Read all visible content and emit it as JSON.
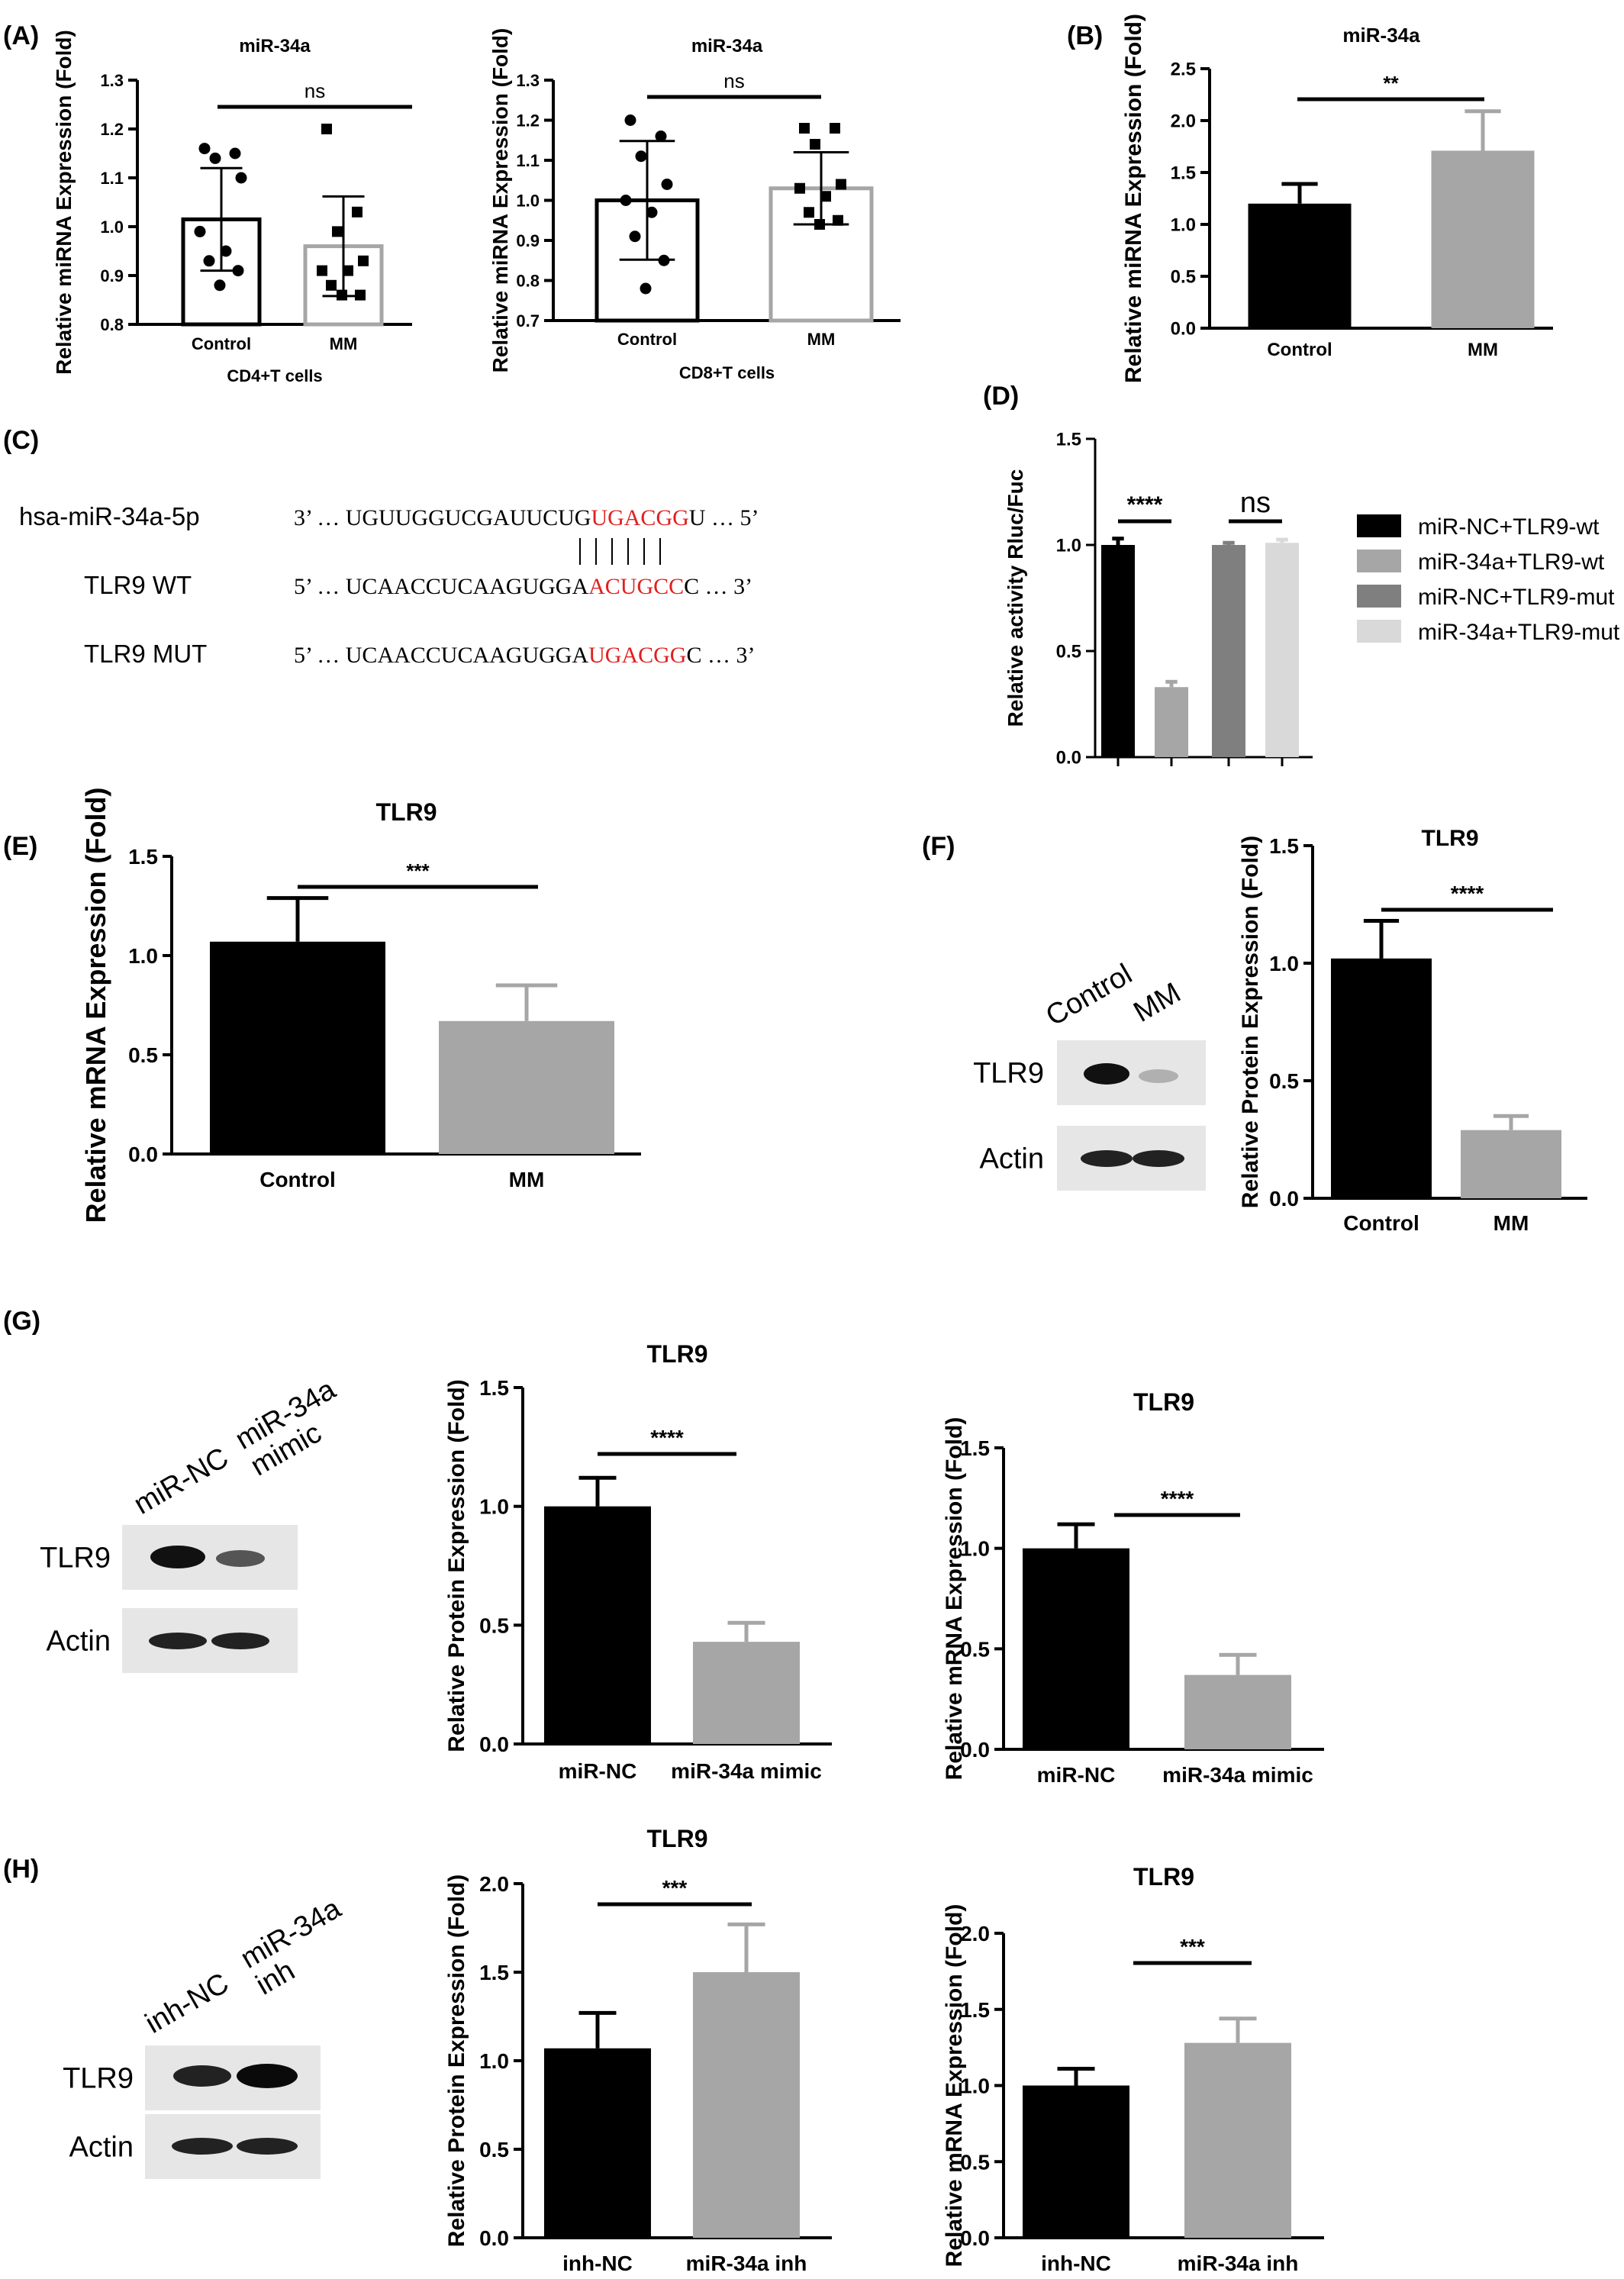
{
  "panels": {
    "A": "(A)",
    "B": "(B)",
    "C": "(C)",
    "D": "(D)",
    "E": "(E)",
    "F": "(F)",
    "G": "(G)",
    "H": "(H)"
  },
  "colors": {
    "black": "#000000",
    "gray": "#a6a6a6",
    "dark_gray": "#7f7f7f",
    "light_gray": "#d9d9d9",
    "red": "#e02020"
  },
  "sequence": {
    "rows": [
      {
        "name": "hsa-miR-34a-5p",
        "p5": "3’",
        "dots1": "…",
        "seq": "UGUUGGUCGAUUCUG",
        "seed": "UGACGG",
        "tail": "U",
        "dots2": "…",
        "p3": "5’"
      },
      {
        "name": "TLR9 WT",
        "p5": "5’",
        "dots1": "…",
        "seq": "UCAACCUCAAGUGGA",
        "seed": "ACUGCC",
        "tail": "C",
        "dots2": "…",
        "p3": "3’"
      },
      {
        "name": "TLR9 MUT",
        "p5": "5’",
        "dots1": "…",
        "seq": "UCAACCUCAAGUGGA",
        "seed": "UGACGG",
        "tail": "C",
        "dots2": "…",
        "p3": "3’"
      }
    ]
  },
  "blots": {
    "F": {
      "lanes": [
        "Control",
        "MM"
      ],
      "rows": [
        "TLR9",
        "Actin"
      ]
    },
    "G": {
      "lanes": [
        "miR-NC",
        "miR-34a mimic"
      ],
      "lane2_lines": [
        "miR-34a",
        "mimic"
      ],
      "rows": [
        "TLR9",
        "Actin"
      ]
    },
    "H": {
      "lanes": [
        "inh-NC",
        "miR-34a inh"
      ],
      "lane2_lines": [
        "miR-34a",
        "inh"
      ],
      "rows": [
        "TLR9",
        "Actin"
      ]
    }
  },
  "chart_data": [
    {
      "id": "A1",
      "type": "bar",
      "title": "miR-34a",
      "ylabel": "Relative miRNA Expression (Fold)",
      "xlabel": "CD4+T cells",
      "categories": [
        "Control",
        "MM"
      ],
      "values": [
        1.015,
        0.96
      ],
      "errors": [
        0.105,
        0.102
      ],
      "ylim": [
        0.8,
        1.3
      ],
      "yticks": [
        0.8,
        0.9,
        1.0,
        1.1,
        1.2,
        1.3
      ],
      "style": "outline",
      "colors": [
        "#000000",
        "#a6a6a6"
      ],
      "points": [
        [
          1.16,
          1.15,
          1.14,
          1.1,
          0.99,
          0.95,
          0.93,
          0.91,
          0.88
        ],
        [
          1.2,
          1.03,
          0.99,
          0.93,
          0.91,
          0.91,
          0.88,
          0.86,
          0.86
        ]
      ],
      "markers": [
        "circle",
        "square"
      ],
      "significance": "ns"
    },
    {
      "id": "A2",
      "type": "bar",
      "title": "miR-34a",
      "ylabel": "Relative miRNA Expression (Fold)",
      "xlabel": "CD8+T cells",
      "categories": [
        "Control",
        "MM"
      ],
      "values": [
        1.0,
        1.03
      ],
      "errors": [
        0.148,
        0.09
      ],
      "ylim": [
        0.7,
        1.3
      ],
      "yticks": [
        0.7,
        0.8,
        0.9,
        1.0,
        1.1,
        1.2,
        1.3
      ],
      "style": "outline",
      "colors": [
        "#000000",
        "#a6a6a6"
      ],
      "points": [
        [
          1.2,
          1.16,
          1.11,
          1.04,
          1.0,
          0.97,
          0.91,
          0.85,
          0.78
        ],
        [
          1.18,
          1.18,
          1.14,
          1.04,
          1.03,
          1.01,
          0.97,
          0.95,
          0.94
        ]
      ],
      "markers": [
        "circle",
        "square"
      ],
      "significance": "ns"
    },
    {
      "id": "B",
      "type": "bar",
      "title": "miR-34a",
      "ylabel": "Relative miRNA Expression (Fold)",
      "xlabel": "",
      "categories": [
        "Control",
        "MM"
      ],
      "values": [
        1.2,
        1.71
      ],
      "errors": [
        0.19,
        0.38
      ],
      "ylim": [
        0,
        2.5
      ],
      "yticks": [
        0.0,
        0.5,
        1.0,
        1.5,
        2.0,
        2.5
      ],
      "style": "filled",
      "colors": [
        "#000000",
        "#a6a6a6"
      ],
      "significance": "**"
    },
    {
      "id": "D",
      "type": "bar",
      "title": "",
      "ylabel": "Relative activity Rluc/Fuc",
      "xlabel": "",
      "categories": [
        "miR-NC+TLR9-wt",
        "miR-34a+TLR9-wt",
        "miR-NC+TLR9-mut",
        "miR-34a+TLR9-mut"
      ],
      "values": [
        1.0,
        0.33,
        1.0,
        1.01
      ],
      "errors": [
        0.03,
        0.025,
        0.01,
        0.015
      ],
      "ylim": [
        0,
        1.5
      ],
      "yticks": [
        0.0,
        0.5,
        1.0,
        1.5
      ],
      "style": "filled",
      "colors": [
        "#000000",
        "#a6a6a6",
        "#7f7f7f",
        "#d9d9d9"
      ],
      "legend": [
        "miR-NC+TLR9-wt",
        "miR-34a+TLR9-wt",
        "miR-NC+TLR9-mut",
        "miR-34a+TLR9-mut"
      ],
      "legend_position": "right",
      "significance": [
        "****",
        "ns"
      ]
    },
    {
      "id": "E",
      "type": "bar",
      "title": "TLR9",
      "ylabel": "Relative mRNA Expression (Fold)",
      "xlabel": "",
      "categories": [
        "Control",
        "MM"
      ],
      "values": [
        1.07,
        0.67
      ],
      "errors": [
        0.22,
        0.18
      ],
      "ylim": [
        0,
        1.5
      ],
      "yticks": [
        0.0,
        0.5,
        1.0,
        1.5
      ],
      "style": "filled",
      "colors": [
        "#000000",
        "#a6a6a6"
      ],
      "significance": "***"
    },
    {
      "id": "F",
      "type": "bar",
      "title": "TLR9",
      "ylabel": "Relative Protein Expression (Fold)",
      "xlabel": "",
      "categories": [
        "Control",
        "MM"
      ],
      "values": [
        1.02,
        0.29
      ],
      "errors": [
        0.16,
        0.06
      ],
      "ylim": [
        0,
        1.5
      ],
      "yticks": [
        0.0,
        0.5,
        1.0,
        1.5
      ],
      "style": "filled",
      "colors": [
        "#000000",
        "#a6a6a6"
      ],
      "significance": "****"
    },
    {
      "id": "G1",
      "type": "bar",
      "title": "TLR9",
      "ylabel": "Relative Protein Expression (Fold)",
      "xlabel": "",
      "categories": [
        "miR-NC",
        "miR-34a mimic"
      ],
      "values": [
        1.0,
        0.43
      ],
      "errors": [
        0.12,
        0.08
      ],
      "ylim": [
        0,
        1.5
      ],
      "yticks": [
        0.0,
        0.5,
        1.0,
        1.5
      ],
      "style": "filled",
      "colors": [
        "#000000",
        "#a6a6a6"
      ],
      "significance": "****"
    },
    {
      "id": "G2",
      "type": "bar",
      "title": "TLR9",
      "ylabel": "Relative mRNA Expression (Fold)",
      "xlabel": "",
      "categories": [
        "miR-NC",
        "miR-34a mimic"
      ],
      "values": [
        1.0,
        0.37
      ],
      "errors": [
        0.12,
        0.1
      ],
      "ylim": [
        0,
        1.5
      ],
      "yticks": [
        0.0,
        0.5,
        1.0,
        1.5
      ],
      "style": "filled",
      "colors": [
        "#000000",
        "#a6a6a6"
      ],
      "significance": "****"
    },
    {
      "id": "H1",
      "type": "bar",
      "title": "TLR9",
      "ylabel": "Relative Protein Expression (Fold)",
      "xlabel": "",
      "categories": [
        "inh-NC",
        "miR-34a inh"
      ],
      "values": [
        1.07,
        1.5
      ],
      "errors": [
        0.2,
        0.27
      ],
      "ylim": [
        0,
        2.0
      ],
      "yticks": [
        0.0,
        0.5,
        1.0,
        1.5,
        2.0
      ],
      "style": "filled",
      "colors": [
        "#000000",
        "#a6a6a6"
      ],
      "significance": "***"
    },
    {
      "id": "H2",
      "type": "bar",
      "title": "TLR9",
      "ylabel": "Relative mRNA Expression (Fold)",
      "xlabel": "",
      "categories": [
        "inh-NC",
        "miR-34a inh"
      ],
      "values": [
        1.0,
        1.28
      ],
      "errors": [
        0.11,
        0.16
      ],
      "ylim": [
        0,
        2.0
      ],
      "yticks": [
        0.0,
        0.5,
        1.0,
        1.5,
        2.0
      ],
      "style": "filled",
      "colors": [
        "#000000",
        "#a6a6a6"
      ],
      "significance": "***"
    }
  ]
}
